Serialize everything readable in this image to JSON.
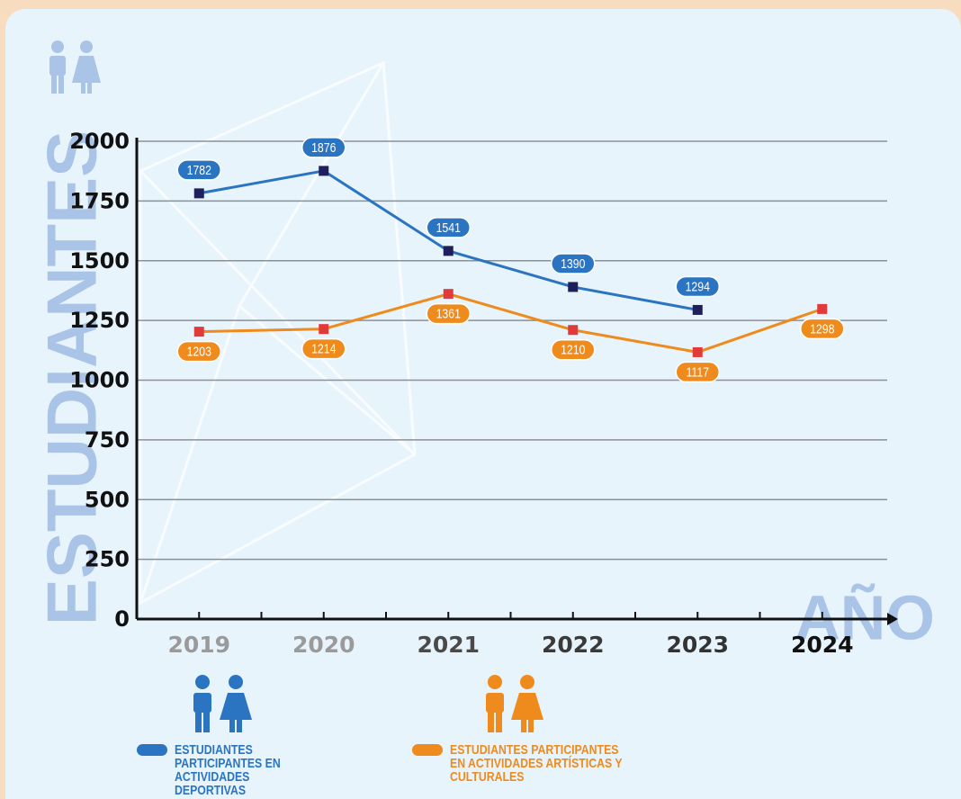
{
  "chart_data": {
    "type": "line",
    "y_label": "ESTUDIANTES",
    "x_label": "AÑO",
    "categories": [
      "2019",
      "2020",
      "2021",
      "2022",
      "2023",
      "2024"
    ],
    "series": [
      {
        "name": "ESTUDIANTES PARTICIPANTES EN ACTIVIDADES DEPORTIVAS",
        "color": "#2b74c2",
        "marker_color": "#1e1f5c",
        "values": [
          1782,
          1876,
          1541,
          1390,
          1294,
          null
        ]
      },
      {
        "name": "ESTUDIANTES PARTICIPANTES EN ACTIVIDADES ARTÍSTICAS Y CULTURALES",
        "color": "#ef8a1c",
        "marker_color": "#e23a3a",
        "values": [
          1203,
          1214,
          1361,
          1210,
          1117,
          1298
        ]
      }
    ],
    "ylim": [
      0,
      2000
    ],
    "yticks": [
      0,
      250,
      500,
      750,
      1000,
      1250,
      1500,
      1750,
      2000
    ],
    "grid": true
  }
}
